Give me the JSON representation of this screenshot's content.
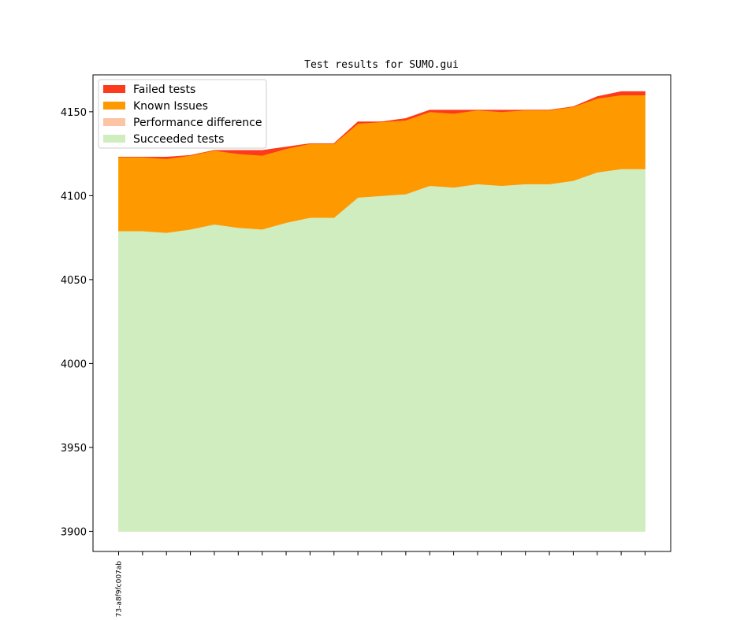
{
  "chart_data": {
    "type": "area",
    "title": "Test results for SUMO.gui",
    "xlabel": "",
    "ylabel": "",
    "ylim": [
      3888,
      4172
    ],
    "yticks": [
      3900,
      3950,
      4000,
      4050,
      4100,
      4150
    ],
    "xtick_labels": [
      "73-a8f9fc007ab",
      "",
      "",
      "",
      "",
      "",
      "",
      "",
      "",
      "",
      "",
      "",
      "",
      "",
      "",
      "",
      "",
      "",
      "",
      "",
      "",
      "",
      ""
    ],
    "baseline": 3900,
    "grid": false,
    "legend_position": "top-left",
    "series": [
      {
        "name": "Succeeded tests",
        "color": "#cfedbf",
        "values": [
          4079,
          4079,
          4078,
          4080,
          4083,
          4081,
          4080,
          4084,
          4087,
          4087,
          4099,
          4100,
          4101,
          4106,
          4105,
          4107,
          4106,
          4107,
          4107,
          4109,
          4114,
          4116,
          4116
        ]
      },
      {
        "name": "Performance difference",
        "color": "#fcc3a5",
        "values": [
          0,
          0,
          0,
          0,
          0,
          0,
          0,
          0,
          0,
          0,
          0,
          0,
          0,
          0,
          0,
          0,
          0,
          0,
          0,
          0,
          0,
          0,
          0
        ]
      },
      {
        "name": "Known Issues",
        "color": "#fe9900",
        "values": [
          44,
          44,
          44,
          44,
          44,
          44,
          44,
          44,
          44,
          44,
          44,
          44,
          44,
          44,
          44,
          44,
          44,
          44,
          44,
          44,
          44,
          44,
          44
        ]
      },
      {
        "name": "Failed tests",
        "color": "#fd3a1c",
        "values": [
          0,
          0,
          1,
          0,
          0,
          2,
          3,
          1,
          0,
          0,
          1,
          0,
          1,
          1,
          2,
          0,
          1,
          0,
          0,
          0,
          1,
          2,
          2
        ]
      }
    ],
    "legend_order": [
      "Failed tests",
      "Known Issues",
      "Performance difference",
      "Succeeded tests"
    ]
  }
}
